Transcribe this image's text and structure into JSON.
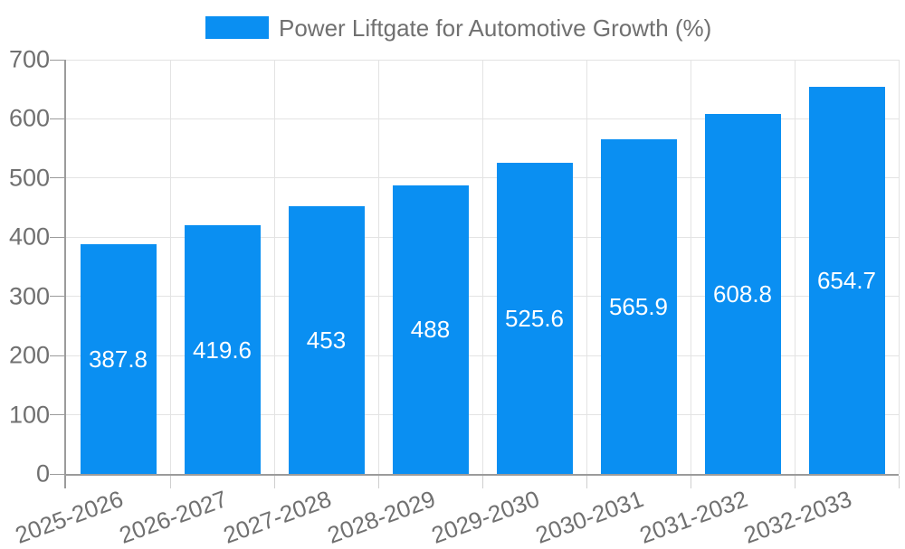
{
  "colors": {
    "bar": "#0a8ff2",
    "grid": "#e3e3e3",
    "axis": "#9b9b9b",
    "tick": "#cfcfcf",
    "text": "#707070",
    "value_text": "#ffffff",
    "background": "#ffffff"
  },
  "chart_data": {
    "type": "bar",
    "legend_label": "Power Liftgate for Automotive Growth (%)",
    "categories": [
      "2025-2026",
      "2026-2027",
      "2027-2028",
      "2028-2029",
      "2029-2030",
      "2030-2031",
      "2031-2032",
      "2032-2033"
    ],
    "values": [
      387.8,
      419.6,
      453,
      488,
      525.6,
      565.9,
      608.8,
      654.7
    ],
    "value_labels": [
      "387.8",
      "419.6",
      "453",
      "488",
      "525.6",
      "565.9",
      "608.8",
      "654.7"
    ],
    "title": "",
    "xlabel": "",
    "ylabel": "",
    "ylim": [
      0,
      700
    ],
    "ytick_step": 100,
    "ytick_labels": [
      "0",
      "100",
      "200",
      "300",
      "400",
      "500",
      "600",
      "700"
    ],
    "grid": true,
    "legend_position": "top-center",
    "value_label_position": "center-of-bar",
    "x_label_rotation_deg": -20
  }
}
